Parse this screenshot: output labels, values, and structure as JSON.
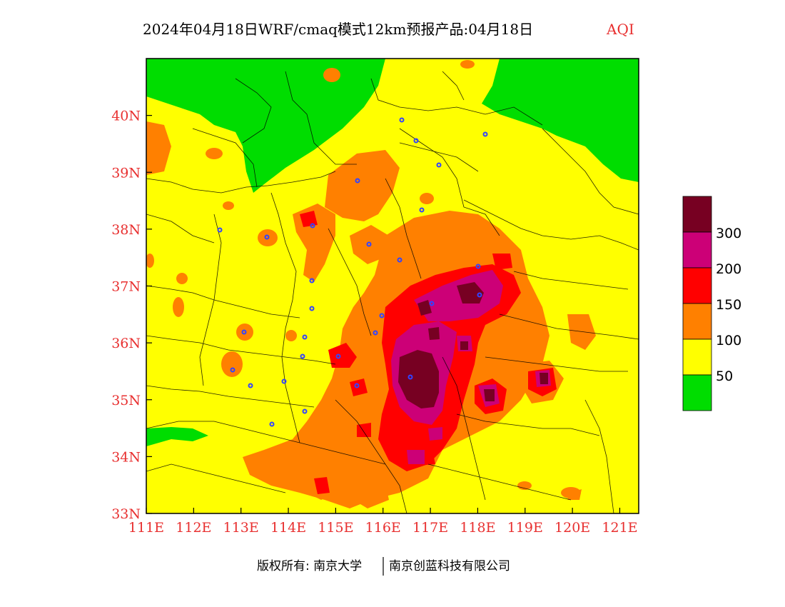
{
  "title": {
    "main": "2024年04月18日WRF/cmaq模式12km预报产品:04月18日",
    "variable": "AQI"
  },
  "axes": {
    "x_ticks": [
      "111E",
      "112E",
      "113E",
      "114E",
      "115E",
      "116E",
      "117E",
      "118E",
      "119E",
      "120E",
      "121E"
    ],
    "y_ticks": [
      "33N",
      "34N",
      "35N",
      "36N",
      "37N",
      "38N",
      "39N",
      "40N"
    ],
    "x_range": [
      111,
      121.4
    ],
    "y_range": [
      33,
      41
    ]
  },
  "legend": {
    "levels": [
      "50",
      "100",
      "150",
      "200",
      "300"
    ],
    "colors": [
      "#00dd00",
      "#ffff00",
      "#ff8000",
      "#ff0000",
      "#cc0077",
      "#770022"
    ]
  },
  "footer": {
    "copyright": "版权所有: 南京大学",
    "company": "南京创蓝科技有限公司"
  },
  "colors": {
    "good": "#00dd00",
    "moderate": "#ffff00",
    "sensitive": "#ff8000",
    "unhealthy": "#ff0000",
    "very_unhealthy": "#cc0077",
    "hazardous": "#770022",
    "tick_label": "#e83030",
    "city_marker": "#3344ff"
  },
  "city_marker_icon": "city-station-icon"
}
